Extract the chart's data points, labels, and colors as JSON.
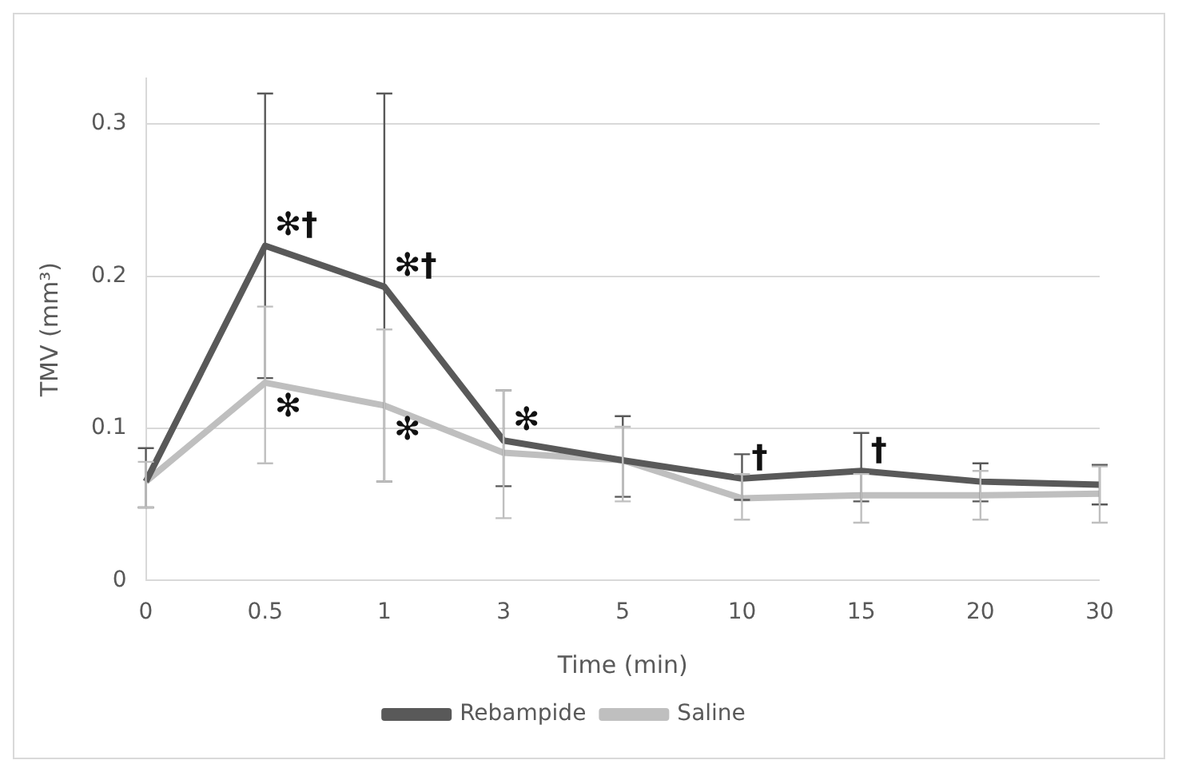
{
  "chart_data": {
    "type": "line",
    "xlabel": "Time (min)",
    "ylabel": "TMV (mm³)",
    "categories": [
      "0",
      "0.5",
      "1",
      "3",
      "5",
      "10",
      "15",
      "20",
      "30"
    ],
    "series": [
      {
        "name": "Rebampide",
        "color": "#595959",
        "values": [
          0.065,
          0.22,
          0.193,
          0.092,
          0.079,
          0.067,
          0.072,
          0.065,
          0.063
        ],
        "errors": [
          [
            0.048,
            0.087
          ],
          [
            0.133,
            0.32
          ],
          [
            0.065,
            0.32
          ],
          [
            0.062,
            0.125
          ],
          [
            0.055,
            0.108
          ],
          [
            0.053,
            0.083
          ],
          [
            0.052,
            0.097
          ],
          [
            0.052,
            0.077
          ],
          [
            0.05,
            0.076
          ]
        ]
      },
      {
        "name": "Saline",
        "color": "#bfbfbf",
        "values": [
          0.065,
          0.13,
          0.115,
          0.084,
          0.079,
          0.054,
          0.056,
          0.056,
          0.057
        ],
        "errors": [
          [
            0.048,
            0.078
          ],
          [
            0.077,
            0.18
          ],
          [
            0.065,
            0.165
          ],
          [
            0.041,
            0.125
          ],
          [
            0.052,
            0.101
          ],
          [
            0.04,
            0.07
          ],
          [
            0.038,
            0.07
          ],
          [
            0.04,
            0.072
          ],
          [
            0.038,
            0.075
          ]
        ]
      }
    ],
    "ylim": [
      0,
      0.33
    ],
    "yticks": [
      0,
      0.1,
      0.2,
      0.3
    ],
    "grid": "y",
    "legend": "bottom",
    "marker": "none",
    "line_style": "solid",
    "annotations": [
      {
        "text": "✻†",
        "x": "0.5",
        "y": 0.22
      },
      {
        "text": "✻",
        "x": "0.5",
        "y": 0.13
      },
      {
        "text": "✻†",
        "x": "1",
        "y": 0.193
      },
      {
        "text": "✻",
        "x": "1",
        "y": 0.115
      },
      {
        "text": "✻",
        "x": "3",
        "y": 0.092
      },
      {
        "text": "†",
        "x": "10",
        "y": 0.067
      },
      {
        "text": "†",
        "x": "15",
        "y": 0.072
      }
    ]
  }
}
